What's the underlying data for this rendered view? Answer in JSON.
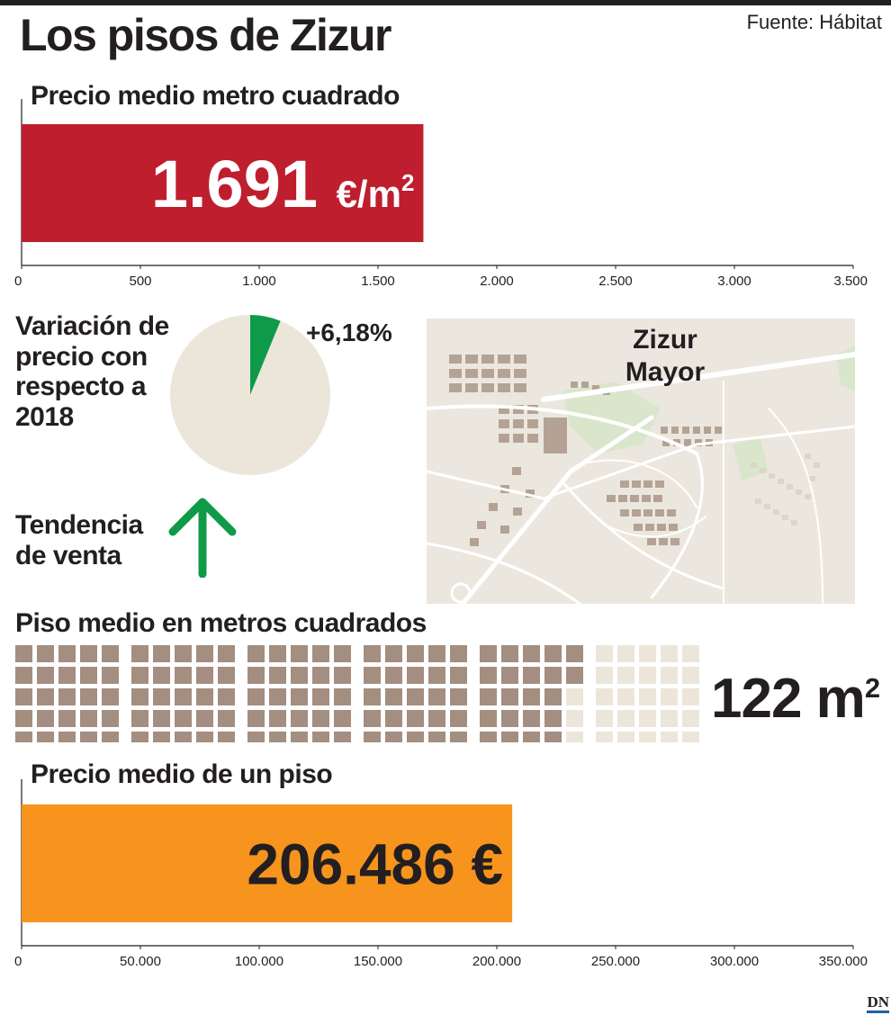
{
  "title": "Los pisos de Zizur",
  "source": "Fuente: Hábitat",
  "logo": "DN",
  "colors": {
    "red": "#be1e2d",
    "orange": "#f7941d",
    "green": "#0f9a4a",
    "beige": "#ece6da",
    "brown": "#a38e80",
    "ink": "#231f20"
  },
  "price_m2": {
    "heading": "Precio medio metro cuadrado",
    "value_text": "1.691",
    "unit": "€/m",
    "unit_sup": "2"
  },
  "variation": {
    "heading": "Variación de precio con respecto a 2018",
    "heading_lines": [
      "Variación de",
      "precio con",
      "respecto a",
      "2018"
    ],
    "label": "+6,18%"
  },
  "trend": {
    "heading_lines": [
      "Tendencia",
      "de venta"
    ],
    "icon": "arrow-up-icon"
  },
  "map": {
    "label_lines": [
      "Zizur",
      "Mayor"
    ]
  },
  "area": {
    "heading": "Piso medio en metros cuadrados",
    "value_text": "122 m",
    "value_sup": "2"
  },
  "house_price": {
    "heading": "Precio medio de un piso",
    "value_text": "206.486 €"
  },
  "chart_data": [
    {
      "type": "bar",
      "orientation": "horizontal",
      "title": "Precio medio metro cuadrado",
      "categories": [
        ""
      ],
      "values": [
        1691
      ],
      "unit": "€/m²",
      "xlim": [
        0,
        3500
      ],
      "xticks": [
        0,
        500,
        1000,
        1500,
        2000,
        2500,
        3000,
        3500
      ],
      "xtick_labels": [
        "0",
        "500",
        "1.000",
        "1.500",
        "2.000",
        "2.500",
        "3.000",
        "3.500"
      ],
      "color": "#be1e2d",
      "grid": false
    },
    {
      "type": "pie",
      "title": "Variación de precio con respecto a 2018",
      "values": [
        6.18,
        93.82
      ],
      "labels": [
        "+6,18%",
        ""
      ],
      "colors": [
        "#0f9a4a",
        "#ece6da"
      ]
    },
    {
      "type": "waffle",
      "title": "Piso medio en metros cuadrados",
      "value": 122,
      "total": 150,
      "unit": "m²",
      "colors": [
        "#a38e80",
        "#ece6da"
      ]
    },
    {
      "type": "bar",
      "orientation": "horizontal",
      "title": "Precio medio de un piso",
      "categories": [
        ""
      ],
      "values": [
        206486
      ],
      "unit": "€",
      "xlim": [
        0,
        350000
      ],
      "xticks": [
        0,
        50000,
        100000,
        150000,
        200000,
        250000,
        300000,
        350000
      ],
      "xtick_labels": [
        "0",
        "50.000",
        "100.000",
        "150.000",
        "200.000",
        "250.000",
        "300.000",
        "350.000"
      ],
      "color": "#f7941d",
      "grid": false
    }
  ]
}
